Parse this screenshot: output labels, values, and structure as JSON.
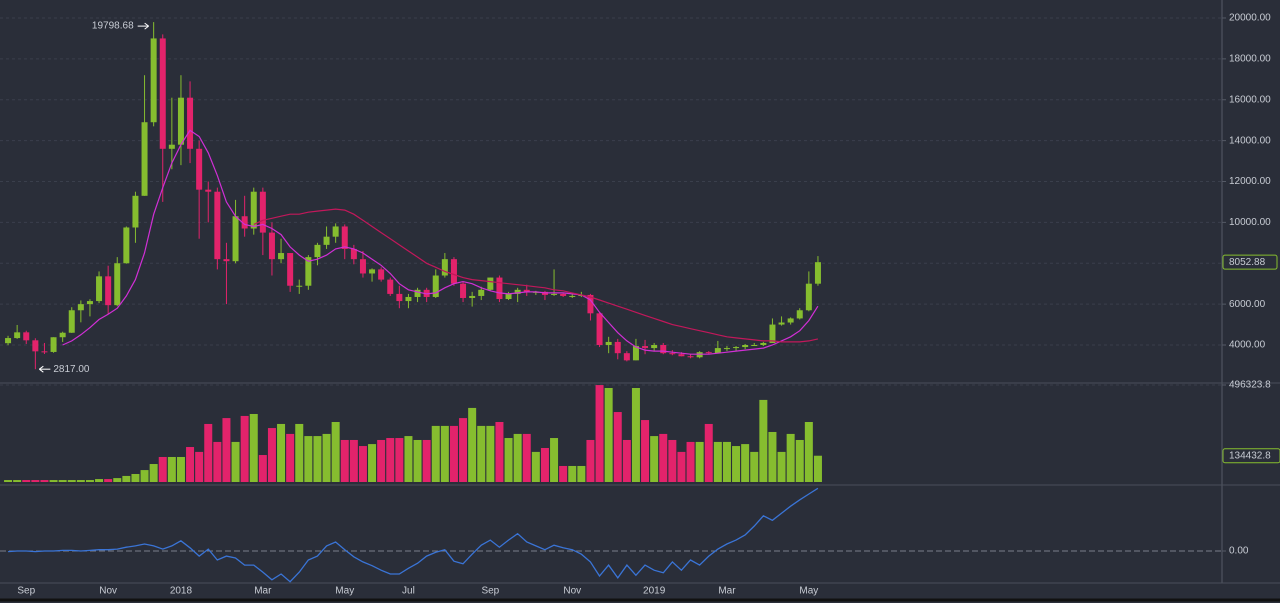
{
  "chart_data": [
    {
      "type": "candlestick",
      "up_color": "#86bd2f",
      "down_color": "#e3236b",
      "open": [
        4090,
        4340,
        4620,
        4230,
        3690,
        3660,
        4380,
        4600,
        5700,
        6000,
        6150,
        7360,
        5950,
        8000,
        9750,
        11300,
        14900,
        19000,
        13600,
        13800,
        16100,
        13600,
        11600,
        11500,
        8200,
        8100,
        10300,
        9700,
        11500,
        9500,
        8200,
        8500,
        6900,
        6900,
        8300,
        8900,
        9300,
        9800,
        8700,
        8200,
        7500,
        7700,
        7200,
        6500,
        6150,
        6350,
        6700,
        6350,
        7400,
        8200,
        7000,
        6300,
        6400,
        6700,
        7300,
        6250,
        6500,
        6700,
        6600,
        6600,
        6450,
        6500,
        6400,
        6400,
        6450,
        5550,
        4000,
        4150,
        3600,
        3250,
        3950,
        3850,
        4000,
        3600,
        3550,
        3450,
        3400,
        3650,
        3600,
        3850,
        3850,
        3900,
        4000,
        4000,
        4100,
        5000,
        5100,
        5300,
        5700,
        7000
      ],
      "high": [
        4450,
        4980,
        4700,
        4330,
        4100,
        4380,
        4650,
        5850,
        6180,
        6240,
        7600,
        7880,
        8300,
        9800,
        11500,
        17200,
        19798.68,
        19200,
        16100,
        17200,
        16900,
        14000,
        12000,
        11700,
        9000,
        11100,
        11300,
        11700,
        11700,
        10000,
        9200,
        8500,
        7200,
        8400,
        9000,
        9800,
        9950,
        9900,
        8900,
        8600,
        7750,
        7800,
        7300,
        6900,
        6500,
        6800,
        6800,
        7700,
        8500,
        8300,
        7100,
        6600,
        6850,
        7300,
        7400,
        6600,
        6800,
        6950,
        6650,
        6650,
        7700,
        6550,
        6500,
        6600,
        6500,
        5600,
        4400,
        4300,
        3700,
        4300,
        4250,
        4100,
        4100,
        3750,
        3650,
        3550,
        3700,
        3700,
        4200,
        3950,
        3950,
        4050,
        4100,
        4150,
        5300,
        5400,
        5350,
        5800,
        7600,
        8350
      ],
      "low": [
        3990,
        4300,
        4050,
        2817,
        3560,
        3620,
        4150,
        4590,
        5110,
        5400,
        6050,
        5510,
        5900,
        7980,
        9000,
        11300,
        14700,
        11000,
        12600,
        12800,
        12900,
        9200,
        10000,
        7700,
        6000,
        8000,
        9300,
        9400,
        8400,
        7400,
        8000,
        6600,
        6500,
        6700,
        7900,
        8700,
        9000,
        8200,
        7950,
        7300,
        7100,
        7100,
        6400,
        5800,
        5800,
        6100,
        6100,
        6300,
        7300,
        6900,
        6100,
        5880,
        6200,
        6650,
        6100,
        6200,
        6100,
        6400,
        6450,
        6200,
        6400,
        6350,
        6300,
        6350,
        5200,
        3900,
        3600,
        3300,
        3200,
        3250,
        3550,
        3700,
        3550,
        3500,
        3450,
        3350,
        3350,
        3550,
        3600,
        3700,
        3700,
        3800,
        3950,
        3950,
        4100,
        4950,
        5000,
        5250,
        5650,
        6900
      ],
      "close": [
        4340,
        4620,
        4230,
        3690,
        3660,
        4380,
        4600,
        5700,
        6000,
        6150,
        7360,
        5950,
        8000,
        9750,
        11300,
        14900,
        19000,
        13600,
        13800,
        16100,
        13600,
        11600,
        11500,
        8200,
        8100,
        10300,
        9700,
        11500,
        9500,
        8200,
        8500,
        6900,
        6900,
        8300,
        8900,
        9300,
        9800,
        8700,
        8200,
        7500,
        7700,
        7200,
        6500,
        6150,
        6350,
        6700,
        6350,
        7400,
        8200,
        7000,
        6300,
        6400,
        6700,
        7300,
        6250,
        6500,
        6700,
        6600,
        6600,
        6450,
        6500,
        6400,
        6400,
        6450,
        5550,
        4000,
        4150,
        3600,
        3250,
        3950,
        3850,
        4000,
        3600,
        3550,
        3450,
        3400,
        3650,
        3600,
        3850,
        3850,
        3900,
        4000,
        4000,
        4100,
        5000,
        5100,
        5300,
        5700,
        7000,
        8052.88
      ],
      "series": [
        {
          "color": "#d12fd6",
          "values": [
            null,
            null,
            null,
            null,
            null,
            null,
            4000,
            4200,
            4500,
            4850,
            5250,
            5500,
            5800,
            6400,
            7200,
            8500,
            10400,
            11700,
            12900,
            13800,
            14500,
            14200,
            13400,
            12300,
            11000,
            10300,
            9900,
            9800,
            9900,
            9700,
            9400,
            8800,
            8400,
            8100,
            8200,
            8400,
            8700,
            8800,
            8700,
            8500,
            8200,
            7900,
            7500,
            7000,
            6700,
            6600,
            6500,
            6550,
            6800,
            7000,
            7100,
            7000,
            6800,
            6650,
            6550,
            6500,
            6550,
            6600,
            6600,
            6550,
            6550,
            6550,
            6500,
            6450,
            6200,
            5600,
            5100,
            4600,
            4200,
            3900,
            3750,
            3700,
            3700,
            3650,
            3600,
            3550,
            3550,
            3550,
            3600,
            3650,
            3700,
            3750,
            3800,
            3850,
            4000,
            4200,
            4400,
            4700,
            5200,
            5900
          ]
        },
        {
          "color": "#c2185b",
          "values": [
            null,
            null,
            null,
            null,
            null,
            null,
            null,
            null,
            null,
            null,
            null,
            null,
            null,
            null,
            null,
            null,
            null,
            null,
            null,
            null,
            null,
            null,
            null,
            null,
            null,
            null,
            null,
            9900,
            10100,
            10200,
            10300,
            10400,
            10400,
            10500,
            10550,
            10600,
            10650,
            10600,
            10400,
            10100,
            9800,
            9500,
            9200,
            8900,
            8600,
            8300,
            8000,
            7800,
            7600,
            7450,
            7300,
            7200,
            7150,
            7100,
            7050,
            7000,
            6950,
            6900,
            6850,
            6800,
            6700,
            6650,
            6550,
            6450,
            6350,
            6200,
            6050,
            5900,
            5750,
            5600,
            5450,
            5300,
            5150,
            5000,
            4900,
            4800,
            4700,
            4600,
            4500,
            4400,
            4350,
            4300,
            4250,
            4200,
            4200,
            4150,
            4150,
            4150,
            4200,
            4300
          ]
        }
      ],
      "annotations": [
        19798.68,
        {
          "value": 2817,
          "label": "2817.00"
        }
      ],
      "ylim": [
        2190,
        20880
      ],
      "yticks": [
        {
          "value": 4000,
          "label": "4000.00"
        },
        {
          "value": 6000,
          "label": "6000.00"
        },
        {
          "value": 8000,
          "label": "8000.00"
        },
        {
          "value": 10000,
          "label": "10000.00"
        },
        {
          "value": 12000,
          "label": "12000.00"
        },
        {
          "value": 14000,
          "label": "14000.00"
        },
        {
          "value": 16000,
          "label": "16000.00"
        },
        {
          "value": 18000,
          "label": "18000.00"
        },
        {
          "value": 20000,
          "label": "20000.00"
        }
      ],
      "grid": true
    },
    {
      "type": "bar",
      "values": [
        10000,
        10000,
        10000,
        10000,
        10000,
        10000,
        10000,
        10000,
        10000,
        10000,
        15000,
        15000,
        20000,
        31000,
        41000,
        61000,
        92000,
        128000,
        128000,
        128000,
        179000,
        154000,
        297000,
        205000,
        327000,
        205000,
        338000,
        348000,
        138000,
        276000,
        297000,
        246000,
        297000,
        235000,
        235000,
        246000,
        307000,
        215000,
        215000,
        184000,
        194000,
        215000,
        225000,
        225000,
        235000,
        215000,
        215000,
        287000,
        287000,
        287000,
        327000,
        379000,
        287000,
        287000,
        307000,
        225000,
        246000,
        246000,
        154000,
        174000,
        225000,
        82000,
        82000,
        82000,
        215000,
        496000,
        481000,
        358000,
        215000,
        481000,
        317000,
        235000,
        246000,
        215000,
        154000,
        205000,
        205000,
        297000,
        205000,
        205000,
        184000,
        194000,
        154000,
        420000,
        256000,
        154000,
        246000,
        215000,
        307000,
        134432.8
      ],
      "ylim": [
        0,
        496323.8
      ],
      "yticks": [
        496323.8
      ]
    },
    {
      "type": "line",
      "categories": [
        null,
        null,
        "Sep",
        null,
        null,
        null,
        null,
        null,
        null,
        null,
        null,
        "Nov",
        null,
        null,
        null,
        null,
        null,
        null,
        null,
        "2018",
        null,
        null,
        null,
        null,
        null,
        null,
        null,
        null,
        "Mar",
        null,
        null,
        null,
        null,
        null,
        null,
        null,
        null,
        "May",
        null,
        null,
        null,
        null,
        null,
        null,
        "Jul",
        null,
        null,
        null,
        null,
        null,
        null,
        null,
        null,
        "Sep",
        null,
        null,
        null,
        null,
        null,
        null,
        null,
        null,
        "Nov",
        null,
        null,
        null,
        null,
        null,
        null,
        null,
        null,
        "2019",
        null,
        null,
        null,
        null,
        null,
        null,
        null,
        "Mar",
        null,
        null,
        null,
        null,
        null,
        null,
        null,
        null,
        "May",
        null
      ],
      "color": "#3a74d6",
      "values": [
        -0.01,
        0,
        0,
        -0.01,
        0,
        0,
        0.01,
        0.01,
        0,
        0.01,
        0.02,
        0.02,
        0.03,
        0.06,
        0.08,
        0.11,
        0.08,
        0.03,
        0.08,
        0.16,
        0.05,
        -0.08,
        0.03,
        -0.14,
        -0.08,
        -0.11,
        -0.22,
        -0.22,
        -0.33,
        -0.45,
        -0.36,
        -0.48,
        -0.33,
        -0.14,
        -0.08,
        0.08,
        0.14,
        0.02,
        -0.09,
        -0.17,
        -0.23,
        -0.3,
        -0.36,
        -0.36,
        -0.27,
        -0.19,
        -0.08,
        -0.02,
        0.02,
        -0.16,
        -0.2,
        -0.05,
        0.09,
        0.17,
        0.06,
        0.17,
        0.27,
        0.14,
        0.08,
        0.02,
        0.09,
        0.05,
        0.02,
        -0.05,
        -0.17,
        -0.39,
        -0.22,
        -0.42,
        -0.22,
        -0.38,
        -0.22,
        -0.3,
        -0.34,
        -0.17,
        -0.3,
        -0.14,
        -0.22,
        -0.08,
        0.03,
        0.11,
        0.17,
        0.25,
        0.39,
        0.55,
        0.48,
        0.59,
        0.7,
        0.8,
        0.89,
        0.98
      ],
      "ylim": [
        -0.5,
        1
      ],
      "yticks": [
        {
          "value": 0,
          "label": "0.00"
        }
      ]
    }
  ]
}
